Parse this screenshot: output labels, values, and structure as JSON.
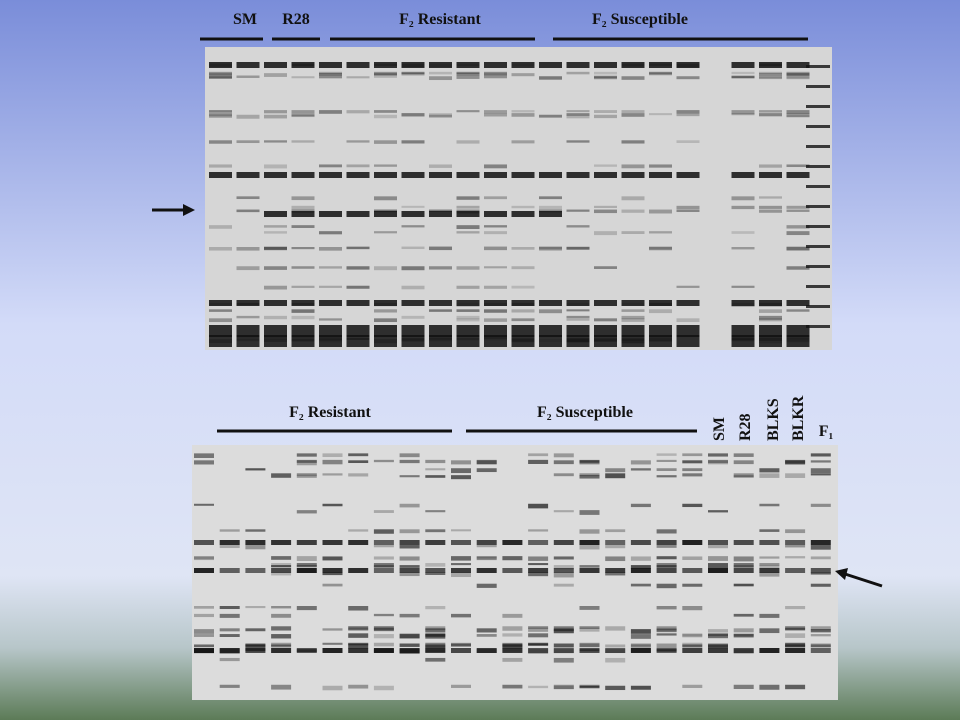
{
  "top_panel": {
    "group_labels": [
      "SM",
      "R28",
      "F₂ Resistant",
      "F₂ Susceptible"
    ]
  },
  "bottom_panel": {
    "group_labels": [
      "F₂ Resistant",
      "F₂ Susceptible"
    ],
    "lane_labels": [
      "SM",
      "R28",
      "BLKS",
      "BLKR",
      "F₁"
    ]
  }
}
